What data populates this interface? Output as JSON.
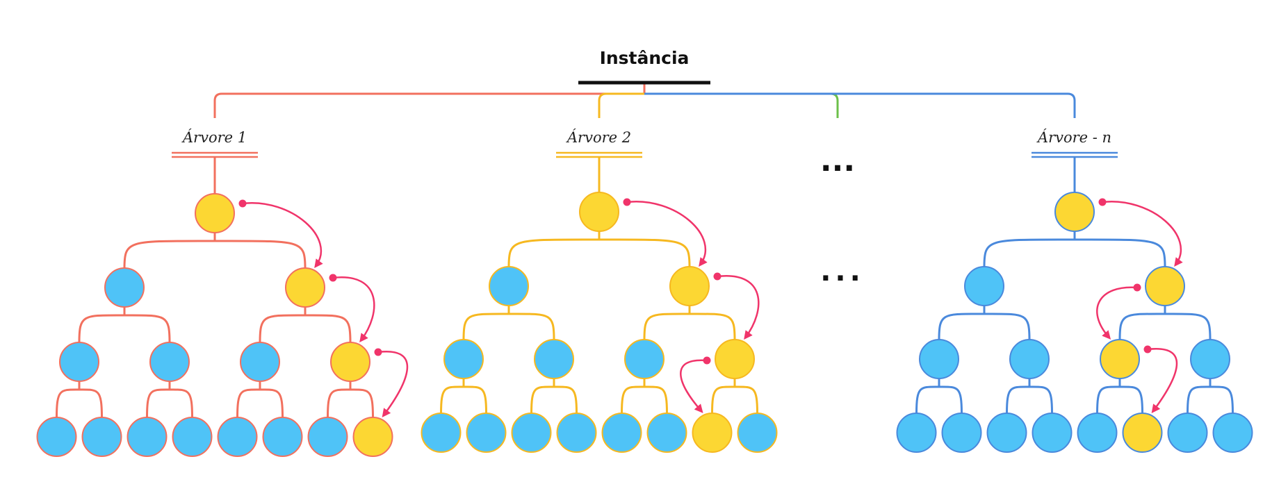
{
  "title": "Instância",
  "ellipsis_top": "...",
  "ellipsis_middle": "...",
  "colors": {
    "title_underline": "#111111",
    "node_selected": "#fcd733",
    "node_unselected": "#4fc3f7",
    "arrow": "#f0346a",
    "connector_green": "#6cc04a"
  },
  "trees": [
    {
      "label": "Árvore 1",
      "color": "#f2705e",
      "path": [
        0,
        1,
        1,
        1
      ]
    },
    {
      "label": "Árvore 2",
      "color": "#f6b820",
      "path": [
        0,
        1,
        1,
        0
      ]
    },
    {
      "label": "Árvore - n",
      "color": "#4a89dc",
      "path": [
        0,
        1,
        0,
        1
      ]
    }
  ]
}
